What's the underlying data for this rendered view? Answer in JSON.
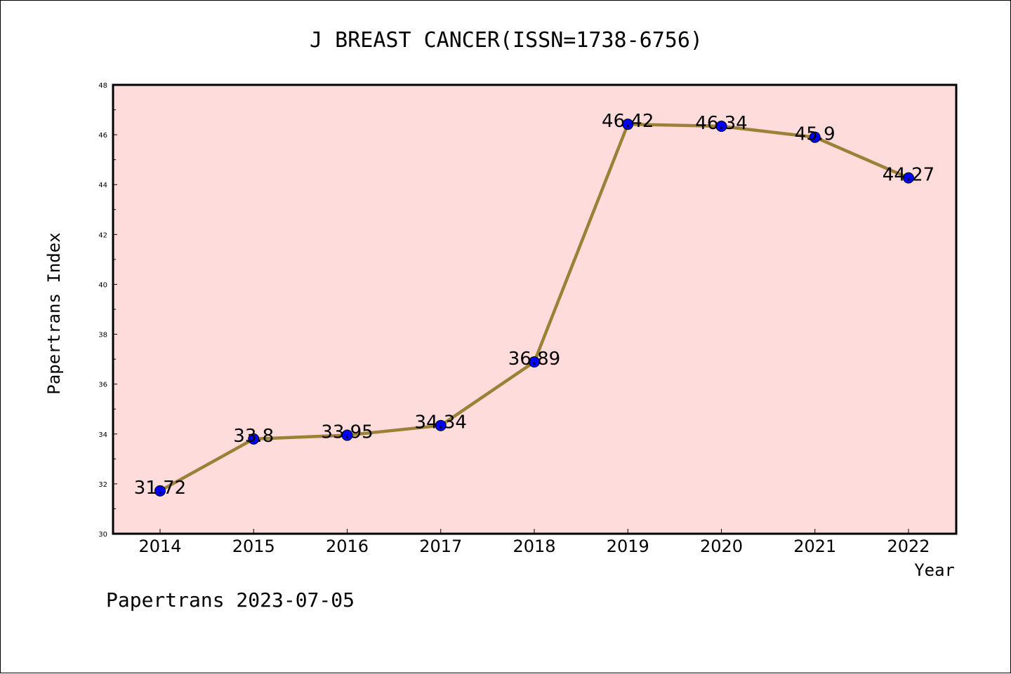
{
  "chart_data": {
    "type": "line",
    "title": "J BREAST CANCER(ISSN=1738-6756)",
    "xlabel": "Year",
    "ylabel": "Papertrans Index",
    "categories": [
      "2014",
      "2015",
      "2016",
      "2017",
      "2018",
      "2019",
      "2020",
      "2021",
      "2022"
    ],
    "values": [
      31.72,
      33.8,
      33.95,
      34.34,
      36.89,
      46.42,
      46.34,
      45.9,
      44.27
    ],
    "data_labels": [
      "31.72",
      "33.8",
      "33.95",
      "34.34",
      "36.89",
      "46.42",
      "46.34",
      "45.9",
      "44.27"
    ],
    "ylim": [
      30,
      48
    ],
    "yticks": [
      30,
      32,
      34,
      36,
      38,
      40,
      42,
      44,
      46,
      48
    ],
    "grid": false,
    "legend": "none",
    "colors": {
      "plot_background": "#ffdcdc",
      "line": "#9b8138",
      "marker": "#0000ff",
      "axes": "#000000"
    }
  },
  "footer": {
    "text": "Papertrans 2023-07-05"
  }
}
